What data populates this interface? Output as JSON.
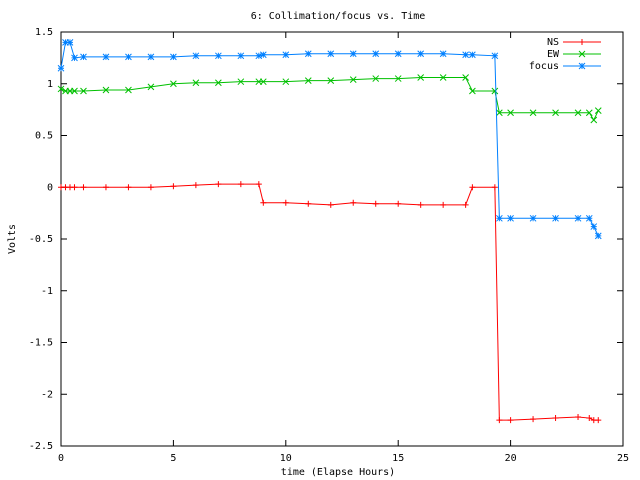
{
  "chart_data": {
    "type": "line",
    "title": "6: Collimation/focus vs. Time",
    "x_label": "time (Elapse Hours)",
    "y_label": "Volts",
    "x": [
      0,
      0.2,
      0.4,
      0.6,
      1,
      2,
      3,
      4,
      5,
      6,
      7,
      8,
      8.8,
      9,
      10,
      11,
      12,
      13,
      14,
      15,
      16,
      17,
      18,
      18.3,
      19.3,
      19.5,
      20,
      21,
      22,
      23,
      23.5,
      23.7,
      23.9
    ],
    "series": [
      {
        "name": "NS",
        "color": "#ff0000",
        "marker": "plus",
        "values": [
          0,
          0,
          0,
          0,
          0,
          0,
          0,
          0,
          0.01,
          0.02,
          0.03,
          0.03,
          0.03,
          -0.15,
          -0.15,
          -0.16,
          -0.17,
          -0.15,
          -0.16,
          -0.16,
          -0.17,
          -0.17,
          -0.17,
          0,
          0,
          -2.25,
          -2.25,
          -2.24,
          -2.23,
          -2.22,
          -2.23,
          -2.25,
          -2.25
        ]
      },
      {
        "name": "EW",
        "color": "#00c000",
        "marker": "cross",
        "values": [
          0.95,
          0.93,
          0.93,
          0.93,
          0.93,
          0.94,
          0.94,
          0.97,
          1.0,
          1.01,
          1.01,
          1.02,
          1.02,
          1.02,
          1.02,
          1.03,
          1.03,
          1.04,
          1.05,
          1.05,
          1.06,
          1.06,
          1.06,
          0.93,
          0.93,
          0.72,
          0.72,
          0.72,
          0.72,
          0.72,
          0.72,
          0.65,
          0.74
        ]
      },
      {
        "name": "focus",
        "color": "#0080ff",
        "marker": "star",
        "values": [
          1.15,
          1.4,
          1.4,
          1.25,
          1.26,
          1.26,
          1.26,
          1.26,
          1.26,
          1.27,
          1.27,
          1.27,
          1.27,
          1.28,
          1.28,
          1.29,
          1.29,
          1.29,
          1.29,
          1.29,
          1.29,
          1.29,
          1.28,
          1.28,
          1.27,
          -0.3,
          -0.3,
          -0.3,
          -0.3,
          -0.3,
          -0.3,
          -0.38,
          -0.47
        ]
      }
    ],
    "xlim": [
      0,
      25
    ],
    "xticks": [
      0,
      5,
      10,
      15,
      20,
      25
    ],
    "ylim": [
      -2.5,
      1.5
    ],
    "yticks": [
      -2.5,
      -2,
      -1.5,
      -1,
      -0.5,
      0,
      0.5,
      1,
      1.5
    ],
    "grid": false,
    "legend": "top-right"
  }
}
